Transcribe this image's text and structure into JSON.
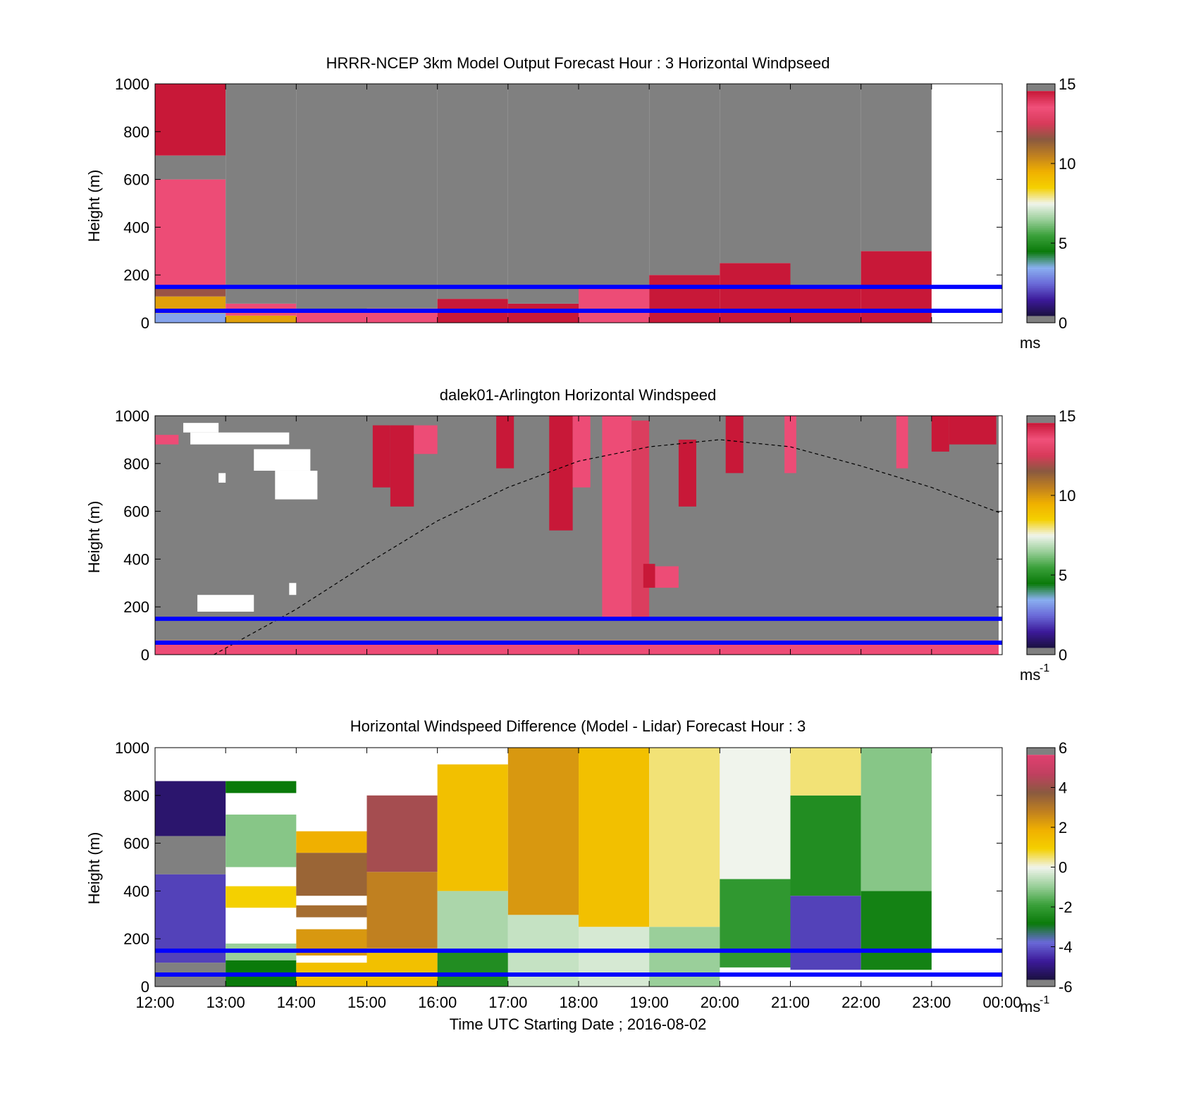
{
  "figure": {
    "xlabel": "Time UTC  Starting Date ; 2016-08-02",
    "x_tick_labels": [
      "12:00",
      "13:00",
      "14:00",
      "15:00",
      "16:00",
      "17:00",
      "18:00",
      "19:00",
      "20:00",
      "21:00",
      "22:00",
      "23:00",
      "00:00"
    ],
    "ylabel": "Height (m)",
    "y_tick_labels": [
      "0",
      "200",
      "400",
      "600",
      "800",
      "1000"
    ]
  },
  "colors": {
    "missing_gray": "#808080",
    "reference_line": "#0000ff",
    "dashed_curve": "#000000",
    "windspeed_scale": [
      "#808080",
      "#1a1040",
      "#3c1a9a",
      "#6a6ad8",
      "#8ab0f0",
      "#0a7a0a",
      "#3aa03a",
      "#9acf9a",
      "#f0f4ec",
      "#f4d000",
      "#f0b000",
      "#c08020",
      "#8a5a40",
      "#d83a5a",
      "#f0507a",
      "#c81838",
      "#808080"
    ],
    "difference_scale": [
      "#808080",
      "#1a1040",
      "#3c1a9a",
      "#6a6ad8",
      "#0a7a0a",
      "#3aa03a",
      "#9acf9a",
      "#f0f4ec",
      "#f4d000",
      "#f0b000",
      "#c08020",
      "#8a5a40",
      "#c04060",
      "#e04070",
      "#808080"
    ]
  },
  "chart_data": [
    {
      "type": "heatmap",
      "title": "HRRR-NCEP 3km Model Output   Forecast Hour : 3 Horizontal Windpseed",
      "xlabel": "",
      "ylabel": "Height (m)",
      "x_unit": "hour UTC from 2016-08-02 12:00",
      "xlim": [
        "12:00",
        "00:00"
      ],
      "ylim": [
        0,
        1000
      ],
      "reference_heights_m": [
        50,
        150
      ],
      "colorbar": {
        "min": 0,
        "max": 15,
        "ticks": [
          "0",
          "5",
          "10",
          "15"
        ],
        "unit_label": "ms"
      },
      "columns": [
        {
          "time": "12:00",
          "segments": [
            {
              "y0": 0,
              "y1": 40,
              "value": 3
            },
            {
              "y0": 40,
              "y1": 110,
              "value": 10
            },
            {
              "y0": 110,
              "y1": 150,
              "value": 12
            },
            {
              "y0": 150,
              "y1": 600,
              "value": 14
            },
            {
              "y0": 600,
              "y1": 700,
              "value": null
            },
            {
              "y0": 700,
              "y1": 1000,
              "value": 15
            }
          ]
        },
        {
          "time": "13:00",
          "segments": [
            {
              "y0": 0,
              "y1": 30,
              "value": 10
            },
            {
              "y0": 30,
              "y1": 80,
              "value": 14
            },
            {
              "y0": 80,
              "y1": 1000,
              "value": null
            }
          ]
        },
        {
          "time": "14:00",
          "segments": [
            {
              "y0": 0,
              "y1": 50,
              "value": 14
            },
            {
              "y0": 50,
              "y1": 1000,
              "value": null
            }
          ]
        },
        {
          "time": "15:00",
          "segments": [
            {
              "y0": 0,
              "y1": 60,
              "value": 14
            },
            {
              "y0": 60,
              "y1": 1000,
              "value": null
            }
          ]
        },
        {
          "time": "16:00",
          "segments": [
            {
              "y0": 0,
              "y1": 100,
              "value": 15
            },
            {
              "y0": 100,
              "y1": 1000,
              "value": null
            }
          ]
        },
        {
          "time": "17:00",
          "segments": [
            {
              "y0": 0,
              "y1": 80,
              "value": 15
            },
            {
              "y0": 80,
              "y1": 1000,
              "value": null
            }
          ]
        },
        {
          "time": "18:00",
          "segments": [
            {
              "y0": 0,
              "y1": 150,
              "value": 14
            },
            {
              "y0": 150,
              "y1": 1000,
              "value": null
            }
          ]
        },
        {
          "time": "19:00",
          "segments": [
            {
              "y0": 0,
              "y1": 200,
              "value": 15
            },
            {
              "y0": 200,
              "y1": 1000,
              "value": null
            }
          ]
        },
        {
          "time": "20:00",
          "segments": [
            {
              "y0": 0,
              "y1": 250,
              "value": 15
            },
            {
              "y0": 250,
              "y1": 1000,
              "value": null
            }
          ]
        },
        {
          "time": "21:00",
          "segments": [
            {
              "y0": 0,
              "y1": 150,
              "value": 15
            },
            {
              "y0": 150,
              "y1": 1000,
              "value": null
            }
          ]
        },
        {
          "time": "22:00",
          "segments": [
            {
              "y0": 0,
              "y1": 300,
              "value": 15
            },
            {
              "y0": 300,
              "y1": 1000,
              "value": null
            }
          ]
        }
      ]
    },
    {
      "type": "heatmap",
      "title": "dalek01-Arlington  Horizontal Windspeed",
      "xlabel": "",
      "ylabel": "Height (m)",
      "x_unit": "hour UTC from 2016-08-02 12:00",
      "xlim": [
        "12:00",
        "00:00"
      ],
      "ylim": [
        0,
        1000
      ],
      "reference_heights_m": [
        50,
        150
      ],
      "background": "missing (gray) above 60 m",
      "colorbar": {
        "min": 0,
        "max": 15,
        "ticks": [
          "0",
          "5",
          "10",
          "15"
        ],
        "unit_label": "ms",
        "unit_exponent": "-1"
      },
      "dashed_curve": {
        "description": "dashed arc",
        "points": [
          [
            "12:50",
            0
          ],
          [
            "14:00",
            190
          ],
          [
            "15:00",
            380
          ],
          [
            "16:00",
            560
          ],
          [
            "17:00",
            700
          ],
          [
            "18:00",
            810
          ],
          [
            "19:00",
            870
          ],
          [
            "20:00",
            900
          ],
          [
            "21:00",
            870
          ],
          [
            "22:00",
            790
          ],
          [
            "23:00",
            700
          ],
          [
            "00:00",
            590
          ]
        ]
      },
      "high_wind_patches": [
        {
          "t0": "12:00",
          "t1": "12:20",
          "y0": 880,
          "y1": 920,
          "value": 14
        },
        {
          "t0": "15:05",
          "t1": "15:20",
          "y0": 700,
          "y1": 960,
          "value": 15
        },
        {
          "t0": "15:20",
          "t1": "15:40",
          "y0": 620,
          "y1": 960,
          "value": 15
        },
        {
          "t0": "15:40",
          "t1": "16:00",
          "y0": 840,
          "y1": 960,
          "value": 14
        },
        {
          "t0": "16:50",
          "t1": "17:05",
          "y0": 780,
          "y1": 1000,
          "value": 15
        },
        {
          "t0": "17:35",
          "t1": "17:55",
          "y0": 520,
          "y1": 1000,
          "value": 15
        },
        {
          "t0": "17:55",
          "t1": "18:10",
          "y0": 700,
          "y1": 1000,
          "value": 14
        },
        {
          "t0": "18:20",
          "t1": "18:45",
          "y0": 150,
          "y1": 1000,
          "value": 14
        },
        {
          "t0": "18:45",
          "t1": "19:00",
          "y0": 150,
          "y1": 980,
          "value": 13
        },
        {
          "t0": "18:55",
          "t1": "19:05",
          "y0": 280,
          "y1": 380,
          "value": 15
        },
        {
          "t0": "19:05",
          "t1": "19:25",
          "y0": 280,
          "y1": 370,
          "value": 14
        },
        {
          "t0": "19:25",
          "t1": "19:40",
          "y0": 620,
          "y1": 900,
          "value": 15
        },
        {
          "t0": "20:05",
          "t1": "20:20",
          "y0": 760,
          "y1": 1000,
          "value": 15
        },
        {
          "t0": "20:55",
          "t1": "21:05",
          "y0": 760,
          "y1": 1000,
          "value": 14
        },
        {
          "t0": "22:30",
          "t1": "22:40",
          "y0": 780,
          "y1": 1000,
          "value": 14
        },
        {
          "t0": "23:00",
          "t1": "23:15",
          "y0": 850,
          "y1": 1000,
          "value": 15
        },
        {
          "t0": "23:15",
          "t1": "23:55",
          "y0": 880,
          "y1": 1000,
          "value": 15
        }
      ]
    },
    {
      "type": "heatmap",
      "title": "Horizontal Windspeed Difference (Model - Lidar) Forecast Hour : 3",
      "xlabel": "Time UTC  Starting Date ; 2016-08-02",
      "ylabel": "Height (m)",
      "x_unit": "hour UTC from 2016-08-02 12:00",
      "xlim": [
        "12:00",
        "00:00"
      ],
      "ylim": [
        0,
        1000
      ],
      "reference_heights_m": [
        50,
        150
      ],
      "colorbar": {
        "min": -6,
        "max": 6,
        "ticks": [
          "-6",
          "-4",
          "-2",
          "0",
          "2",
          "4",
          "6"
        ],
        "unit_label": "ms",
        "unit_exponent": "-1"
      },
      "columns": [
        {
          "time": "12:00",
          "top": 860,
          "segments": [
            {
              "y0": 0,
              "y1": 100,
              "value": null
            },
            {
              "y0": 100,
              "y1": 470,
              "value": -4.5
            },
            {
              "y0": 470,
              "y1": 630,
              "value": null
            },
            {
              "y0": 630,
              "y1": 860,
              "value": -5.5
            }
          ]
        },
        {
          "time": "13:00",
          "top": 860,
          "segments": [
            {
              "y0": 0,
              "y1": 110,
              "value": -3
            },
            {
              "y0": 110,
              "y1": 180,
              "value": -1
            },
            {
              "y0": 330,
              "y1": 420,
              "value": 1
            },
            {
              "y0": 500,
              "y1": 720,
              "value": -1.2
            },
            {
              "y0": 810,
              "y1": 860,
              "value": -3
            }
          ]
        },
        {
          "time": "14:00",
          "top": 650,
          "segments": [
            {
              "y0": 0,
              "y1": 100,
              "value": 1.5
            },
            {
              "y0": 130,
              "y1": 240,
              "value": 2.5
            },
            {
              "y0": 290,
              "y1": 340,
              "value": 3.5
            },
            {
              "y0": 380,
              "y1": 560,
              "value": 3.7
            },
            {
              "y0": 560,
              "y1": 650,
              "value": 2
            }
          ]
        },
        {
          "time": "15:00",
          "top": 810,
          "segments": [
            {
              "y0": 0,
              "y1": 160,
              "value": 1.5
            },
            {
              "y0": 160,
              "y1": 480,
              "value": 3
            },
            {
              "y0": 480,
              "y1": 800,
              "value": 4.5
            }
          ]
        },
        {
          "time": "16:00",
          "top": 930,
          "segments": [
            {
              "y0": 0,
              "y1": 150,
              "value": -2.5
            },
            {
              "y0": 150,
              "y1": 400,
              "value": -0.8
            },
            {
              "y0": 400,
              "y1": 930,
              "value": 1.5
            }
          ]
        },
        {
          "time": "17:00",
          "top": 1000,
          "segments": [
            {
              "y0": 0,
              "y1": 300,
              "value": -0.5
            },
            {
              "y0": 300,
              "y1": 1000,
              "value": 2.5
            }
          ]
        },
        {
          "time": "18:00",
          "top": 1000,
          "segments": [
            {
              "y0": 0,
              "y1": 250,
              "value": -0.3
            },
            {
              "y0": 250,
              "y1": 1000,
              "value": 1.5
            }
          ]
        },
        {
          "time": "19:00",
          "top": 1000,
          "segments": [
            {
              "y0": 0,
              "y1": 250,
              "value": -1
            },
            {
              "y0": 250,
              "y1": 1000,
              "value": 0.5
            }
          ]
        },
        {
          "time": "20:00",
          "top": 1000,
          "segments": [
            {
              "y0": 80,
              "y1": 450,
              "value": -2.2
            },
            {
              "y0": 450,
              "y1": 1000,
              "value": 0
            }
          ]
        },
        {
          "time": "21:00",
          "top": 1000,
          "segments": [
            {
              "y0": 70,
              "y1": 380,
              "value": -4.5
            },
            {
              "y0": 380,
              "y1": 800,
              "value": -2.5
            },
            {
              "y0": 800,
              "y1": 1000,
              "value": 0.5
            }
          ]
        },
        {
          "time": "22:00",
          "top": 1000,
          "segments": [
            {
              "y0": 70,
              "y1": 400,
              "value": -2.8
            },
            {
              "y0": 400,
              "y1": 1000,
              "value": -1.2
            }
          ]
        }
      ]
    }
  ]
}
